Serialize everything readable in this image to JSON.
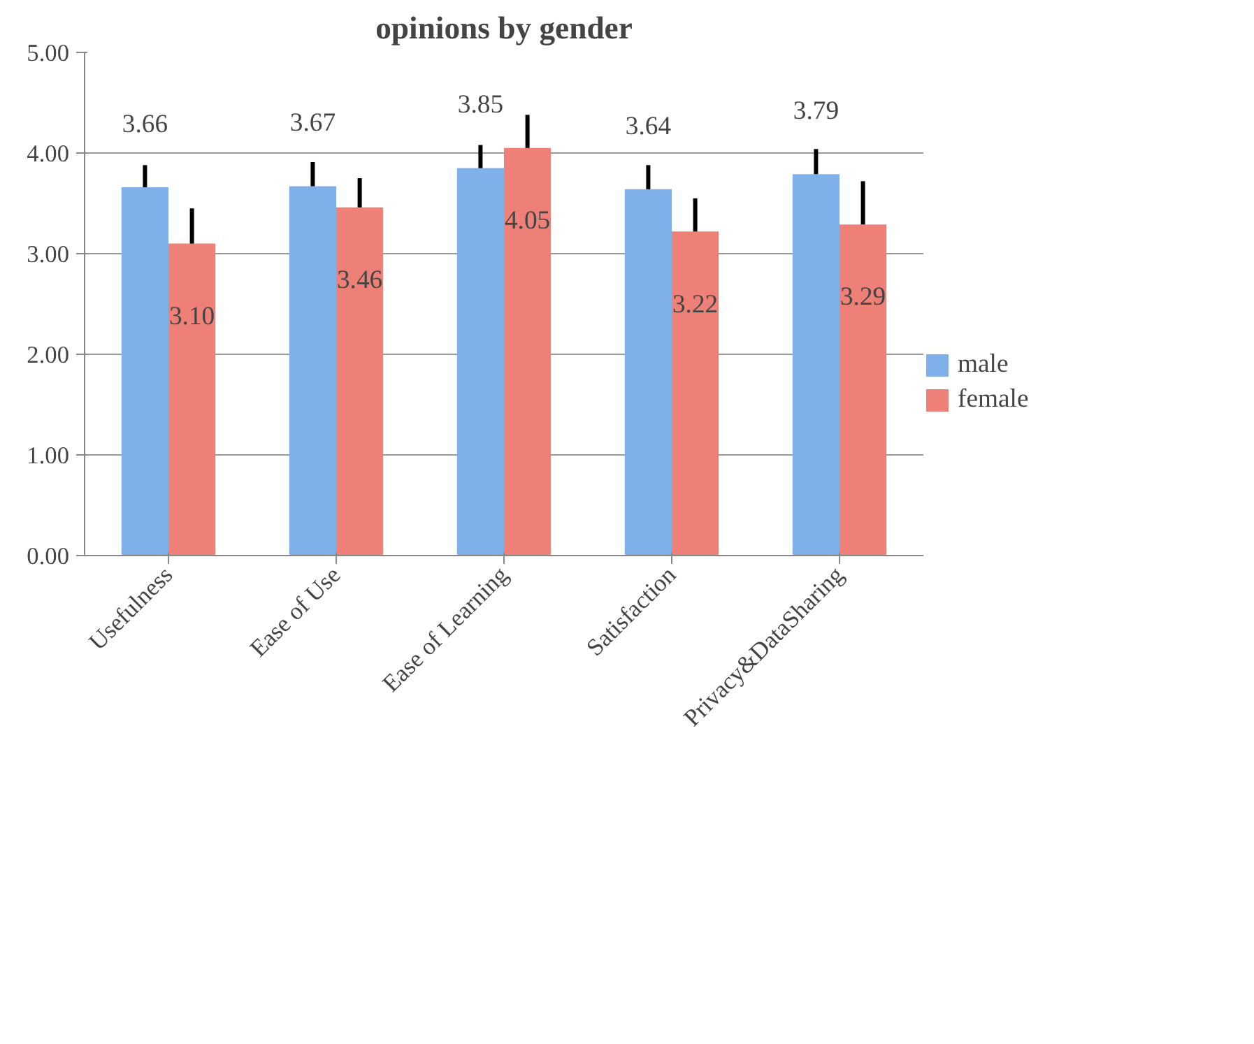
{
  "chart_data": {
    "type": "bar",
    "title": "opinions by gender",
    "categories": [
      "Usefulness",
      "Ease of Use",
      "Ease of Learning",
      "Satisfaction",
      "Privacy&DataSharing"
    ],
    "series": [
      {
        "name": "male",
        "color": "#7fb0ea",
        "values": [
          3.66,
          3.67,
          3.85,
          3.64,
          3.79
        ],
        "value_labels": [
          "3.66",
          "3.67",
          "3.85",
          "3.64",
          "3.79"
        ],
        "errors": [
          [
            3.66,
            3.88
          ],
          [
            3.67,
            3.91
          ],
          [
            3.85,
            4.08
          ],
          [
            3.64,
            3.88
          ],
          [
            3.79,
            4.04
          ]
        ]
      },
      {
        "name": "female",
        "color": "#ee8077",
        "values": [
          3.1,
          3.46,
          4.05,
          3.22,
          3.29
        ],
        "value_labels": [
          "3.10",
          "3.46",
          "4.05",
          "3.22",
          "3.29"
        ],
        "errors": [
          [
            3.1,
            3.45
          ],
          [
            3.46,
            3.75
          ],
          [
            4.05,
            4.38
          ],
          [
            3.22,
            3.55
          ],
          [
            3.29,
            3.72
          ]
        ]
      }
    ],
    "ylim": [
      0,
      5
    ],
    "yticks": [
      {
        "value": 0,
        "label": "0.00"
      },
      {
        "value": 1,
        "label": "1.00"
      },
      {
        "value": 2,
        "label": "2.00"
      },
      {
        "value": 3,
        "label": "3.00"
      },
      {
        "value": 4,
        "label": "4.00"
      },
      {
        "value": 5,
        "label": "5.00"
      }
    ],
    "grid": "y",
    "legend": "right"
  }
}
